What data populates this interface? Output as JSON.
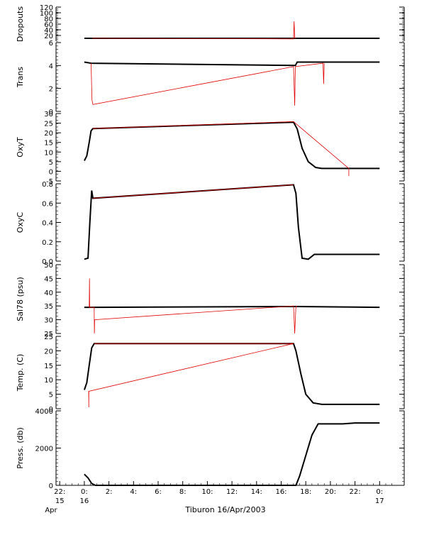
{
  "chart_data": [
    {
      "type": "line",
      "ylabel": "Dropouts",
      "ylim": [
        0,
        120
      ],
      "yticks": [
        "20",
        "40",
        "60",
        "80",
        "100",
        "120"
      ],
      "series": [
        {
          "color": "#000000",
          "x": [
            0.0,
            0.62,
            17.0,
            17.2,
            24.0
          ],
          "y": [
            10,
            10,
            10,
            10,
            10
          ]
        },
        {
          "color": "#e00000",
          "x": [
            0.62,
            17.0,
            17.05,
            17.1,
            17.2
          ],
          "y": [
            10,
            8,
            70,
            12,
            10
          ]
        }
      ]
    },
    {
      "type": "line",
      "ylabel": "Trans",
      "ylim": [
        0,
        6
      ],
      "yticks": [
        "0",
        "2",
        "4",
        "6"
      ],
      "series": [
        {
          "color": "#000000",
          "x": [
            0.0,
            0.55,
            17.15,
            17.3,
            18.0,
            24.0
          ],
          "y": [
            4.3,
            4.2,
            4.0,
            4.3,
            4.3,
            4.3
          ]
        },
        {
          "color": "#e00000",
          "x": [
            0.55,
            0.62,
            0.7,
            17.0,
            17.1,
            17.15,
            19.4,
            19.45,
            19.5
          ],
          "y": [
            4.2,
            1.0,
            0.6,
            3.9,
            0.5,
            3.9,
            4.2,
            2.4,
            4.2
          ]
        }
      ]
    },
    {
      "type": "line",
      "ylabel": "OxyT",
      "ylim": [
        -5,
        30
      ],
      "yticks": [
        "-5",
        "0",
        "5",
        "10",
        "15",
        "20",
        "25",
        "30"
      ],
      "series": [
        {
          "color": "#000000",
          "x": [
            0.0,
            0.2,
            0.4,
            0.55,
            0.7,
            17.0,
            17.3,
            17.7,
            18.2,
            18.8,
            19.3,
            24.0
          ],
          "y": [
            5.5,
            8,
            15,
            21,
            22.2,
            25.5,
            22,
            12,
            5,
            2,
            1.5,
            1.5
          ]
        },
        {
          "color": "#e00000",
          "x": [
            0.7,
            17.0,
            21.5,
            21.5,
            21.5
          ],
          "y": [
            22.2,
            25.8,
            1.5,
            -2.5,
            1.5
          ]
        }
      ]
    },
    {
      "type": "line",
      "ylabel": "OxyC",
      "ylim": [
        0,
        0.8
      ],
      "yticks": [
        "0.0",
        "0.2",
        "0.4",
        "0.6",
        "0.8"
      ],
      "series": [
        {
          "color": "#000000",
          "x": [
            0.0,
            0.3,
            0.45,
            0.6,
            0.7,
            17.0,
            17.2,
            17.4,
            17.7,
            18.2,
            18.7,
            19.3,
            24.0
          ],
          "y": [
            0.02,
            0.03,
            0.4,
            0.73,
            0.65,
            0.79,
            0.7,
            0.35,
            0.03,
            0.02,
            0.07,
            0.07,
            0.07
          ]
        },
        {
          "color": "#e00000",
          "x": [
            0.7,
            17.0
          ],
          "y": [
            0.65,
            0.79
          ]
        }
      ]
    },
    {
      "type": "line",
      "ylabel": "Sal78 (psu)",
      "ylim": [
        25,
        50
      ],
      "yticks": [
        "25",
        "30",
        "35",
        "40",
        "45",
        "50"
      ],
      "series": [
        {
          "color": "#000000",
          "x": [
            0.0,
            0.8,
            17.0,
            17.3,
            24.0
          ],
          "y": [
            34.5,
            34.5,
            34.8,
            34.8,
            34.5
          ]
        },
        {
          "color": "#e00000",
          "x": [
            0.4,
            0.42,
            0.44,
            0.8,
            0.82,
            0.84,
            17.0,
            17.1,
            17.2,
            17.3
          ],
          "y": [
            34.5,
            45,
            34.5,
            34.5,
            25,
            30,
            35,
            25,
            35,
            34.8
          ]
        }
      ]
    },
    {
      "type": "line",
      "ylabel": "Temp. (C)",
      "ylim": [
        0,
        25
      ],
      "yticks": [
        "0",
        "5",
        "10",
        "15",
        "20",
        "25"
      ],
      "series": [
        {
          "color": "#000000",
          "x": [
            0.0,
            0.2,
            0.4,
            0.6,
            0.8,
            17.0,
            17.2,
            17.6,
            18.0,
            18.6,
            19.3,
            24.0
          ],
          "y": [
            6.5,
            9,
            15,
            21,
            22.5,
            22.5,
            20,
            12,
            5,
            2,
            1.5,
            1.5
          ]
        },
        {
          "color": "#e00000",
          "x": [
            0.8,
            17.0,
            0.35,
            0.36,
            0.37
          ],
          "y": [
            22.5,
            22.5,
            6,
            0.5,
            6
          ]
        }
      ]
    },
    {
      "type": "line",
      "ylabel": "Press. (db)",
      "ylim": [
        0,
        4000
      ],
      "yticks": [
        "0",
        "2000",
        "4000"
      ],
      "series": [
        {
          "color": "#000000",
          "x": [
            0.0,
            0.3,
            0.6,
            0.9,
            17.2,
            17.5,
            18.0,
            18.5,
            19.0,
            20.0,
            21.0,
            22.0,
            23.0,
            24.0
          ],
          "y": [
            600,
            400,
            100,
            0,
            0,
            500,
            1600,
            2700,
            3300,
            3300,
            3300,
            3350,
            3350,
            3350
          ]
        },
        {
          "color": "#e00000",
          "x": [
            0.9,
            17.2
          ],
          "y": [
            0,
            0
          ]
        }
      ]
    }
  ],
  "x_axis": {
    "range": [
      -2.3,
      26.0
    ],
    "ticks": [
      {
        "x": -2,
        "label": "22:",
        "sub": "15"
      },
      {
        "x": 0,
        "label": "0:",
        "sub": "16"
      },
      {
        "x": 2,
        "label": "2:",
        "sub": ""
      },
      {
        "x": 4,
        "label": "4:",
        "sub": ""
      },
      {
        "x": 6,
        "label": "6:",
        "sub": ""
      },
      {
        "x": 8,
        "label": "8:",
        "sub": ""
      },
      {
        "x": 10,
        "label": "10:",
        "sub": ""
      },
      {
        "x": 12,
        "label": "12:",
        "sub": ""
      },
      {
        "x": 14,
        "label": "14:",
        "sub": ""
      },
      {
        "x": 16,
        "label": "16:",
        "sub": ""
      },
      {
        "x": 18,
        "label": "18:",
        "sub": ""
      },
      {
        "x": 20,
        "label": "20:",
        "sub": ""
      },
      {
        "x": 22,
        "label": "22:",
        "sub": ""
      },
      {
        "x": 24,
        "label": "0:",
        "sub": "17"
      }
    ],
    "month": "Apr"
  },
  "footer": {
    "title": "Tiburon 16/Apr/2003"
  }
}
